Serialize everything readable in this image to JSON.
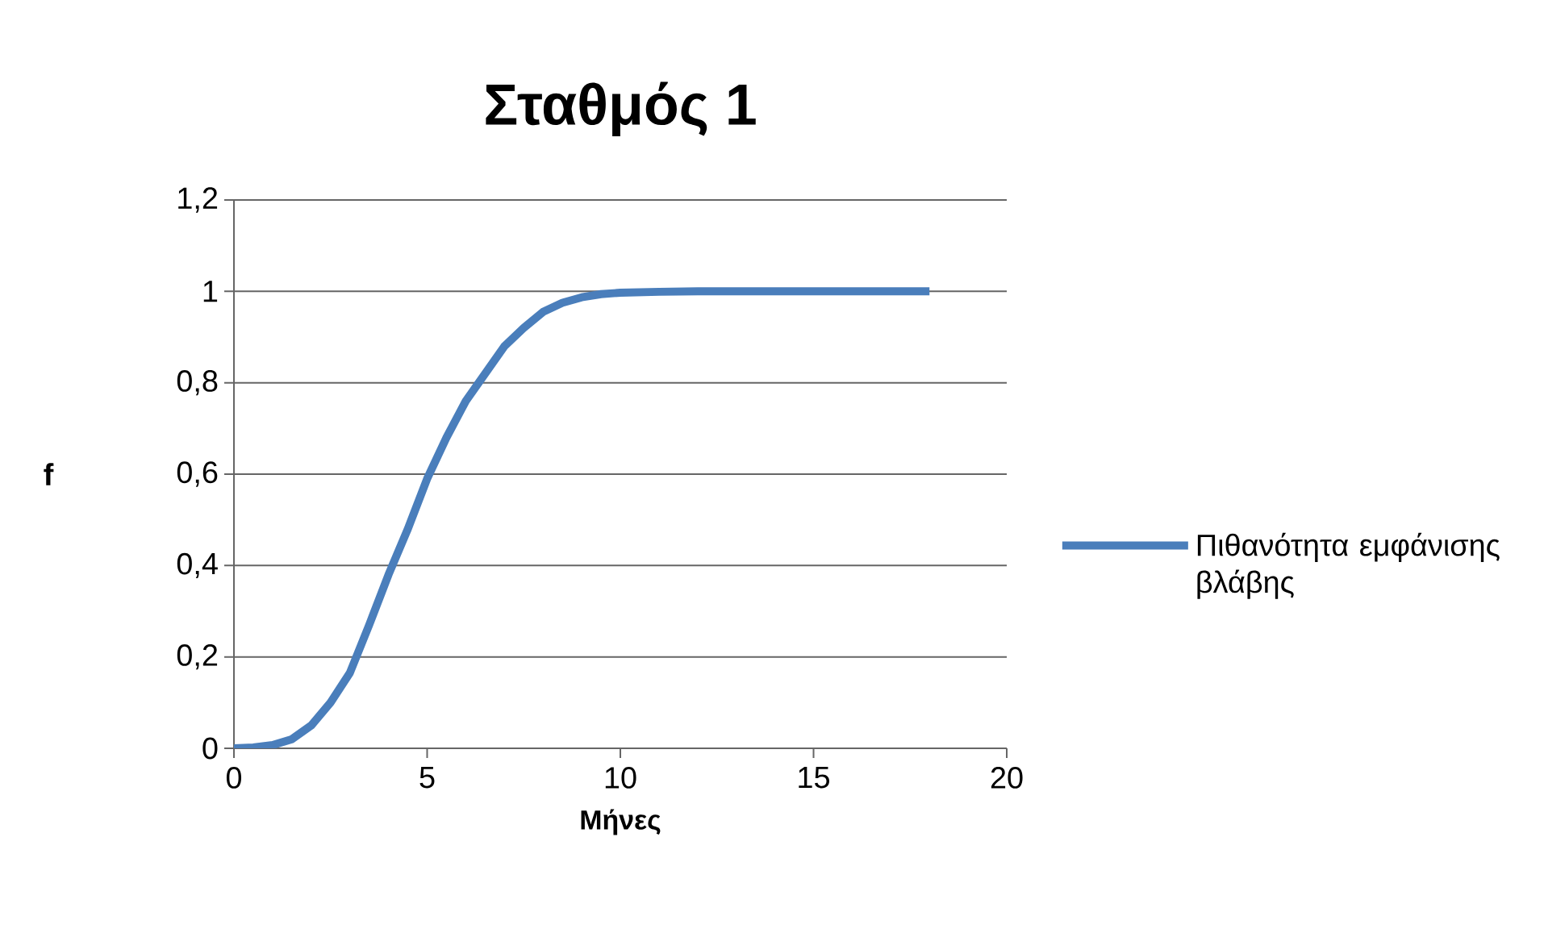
{
  "chart_data": {
    "type": "line",
    "title": "Σταθμός 1",
    "xlabel": "Μήνες",
    "ylabel": "f",
    "x": [
      0,
      0.5,
      1,
      1.5,
      2,
      2.5,
      3,
      3.5,
      4,
      4.5,
      5,
      5.5,
      6,
      6.5,
      7,
      7.5,
      8,
      8.5,
      9,
      9.5,
      10,
      11,
      12,
      13,
      14,
      15,
      16,
      17,
      18
    ],
    "series": [
      {
        "name": "Πιθανότητα εμφάνισης βλάβης",
        "color": "#4a7ebb",
        "values": [
          0,
          0.002,
          0.007,
          0.02,
          0.05,
          0.1,
          0.165,
          0.27,
          0.38,
          0.48,
          0.59,
          0.68,
          0.76,
          0.82,
          0.88,
          0.92,
          0.955,
          0.975,
          0.987,
          0.994,
          0.997,
          0.999,
          1,
          1,
          1,
          1,
          1,
          1,
          1
        ]
      }
    ],
    "xlim": [
      0,
      20
    ],
    "xticks": [
      0,
      5,
      10,
      15,
      20
    ],
    "ylim": [
      0,
      1.2
    ],
    "yticks": [
      0,
      {
        "value": 0.2,
        "label": "0,2"
      },
      {
        "value": 0.4,
        "label": "0,4"
      },
      {
        "value": 0.6,
        "label": "0,6"
      },
      {
        "value": 0.8,
        "label": "0,8"
      },
      1,
      {
        "value": 1.2,
        "label": "1,2"
      }
    ],
    "grid": "y",
    "legend": "right",
    "marker": "none",
    "line_style": "solid"
  }
}
